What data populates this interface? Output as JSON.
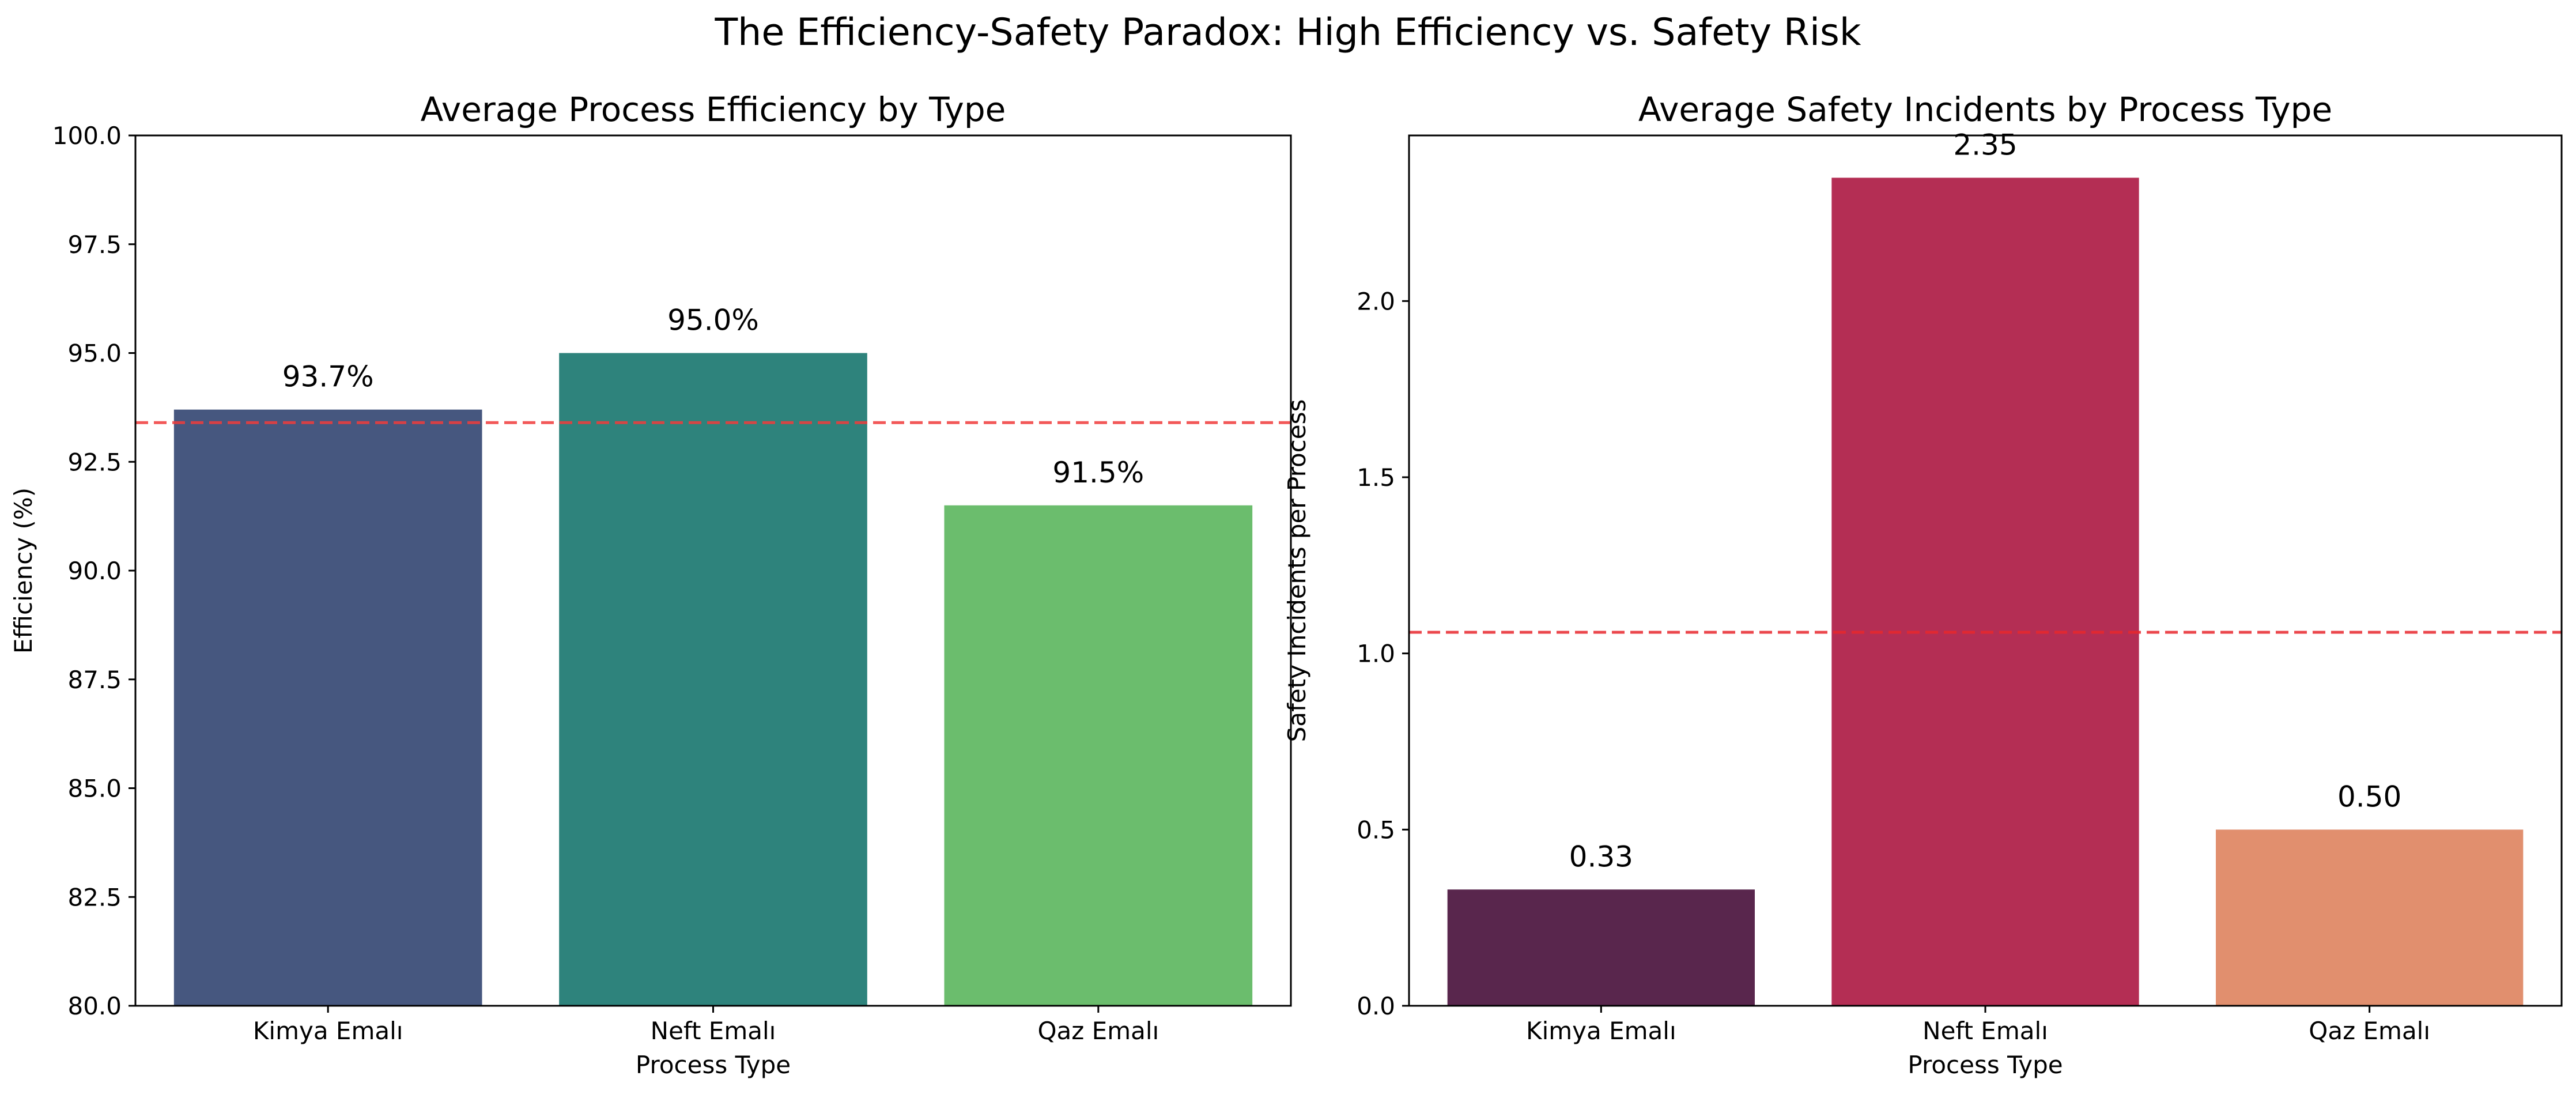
{
  "figure_title": "The Efficiency-Safety Paradox: High Efficiency vs. Safety Risk",
  "chart_data": [
    {
      "type": "bar",
      "title": "Average Process Efficiency by Type",
      "xlabel": "Process Type",
      "ylabel": "Efficiency (%)",
      "categories": [
        "Kimya Emalı",
        "Neft Emalı",
        "Qaz Emalı"
      ],
      "values": [
        93.7,
        95.0,
        91.5
      ],
      "data_labels": [
        "93.7%",
        "95.0%",
        "91.5%"
      ],
      "colors": [
        "#46577f",
        "#2e837c",
        "#6bbd6d"
      ],
      "ylim": [
        80,
        100
      ],
      "yticks": [
        80.0,
        82.5,
        85.0,
        87.5,
        90.0,
        92.5,
        95.0,
        97.5,
        100.0
      ],
      "ytick_labels": [
        "80.0",
        "82.5",
        "85.0",
        "87.5",
        "90.0",
        "92.5",
        "95.0",
        "97.5",
        "100.0"
      ],
      "reference_line": {
        "value": 93.4,
        "style": "dashed",
        "color": "#f03c3c"
      },
      "grid": false
    },
    {
      "type": "bar",
      "title": "Average Safety Incidents by Process Type",
      "xlabel": "Process Type",
      "ylabel": "Safety Incidents per Process",
      "categories": [
        "Kimya Emalı",
        "Neft Emalı",
        "Qaz Emalı"
      ],
      "values": [
        0.33,
        2.35,
        0.5
      ],
      "data_labels": [
        "0.33",
        "2.35",
        "0.50"
      ],
      "colors": [
        "#59264d",
        "#b42e54",
        "#e18f6e"
      ],
      "ylim": [
        0,
        2.47
      ],
      "yticks": [
        0.0,
        0.5,
        1.0,
        1.5,
        2.0
      ],
      "ytick_labels": [
        "0.0",
        "0.5",
        "1.0",
        "1.5",
        "2.0"
      ],
      "reference_line": {
        "value": 1.06,
        "style": "dashed",
        "color": "#e8272d"
      },
      "grid": false
    }
  ]
}
